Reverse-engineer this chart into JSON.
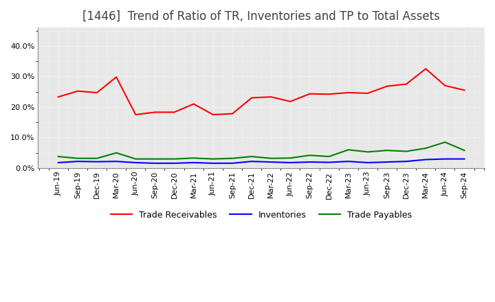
{
  "title": "[1446]  Trend of Ratio of TR, Inventories and TP to Total Assets",
  "x_labels": [
    "Jun-19",
    "Sep-19",
    "Dec-19",
    "Mar-20",
    "Jun-20",
    "Sep-20",
    "Dec-20",
    "Mar-21",
    "Jun-21",
    "Sep-21",
    "Dec-21",
    "Mar-22",
    "Jun-22",
    "Sep-22",
    "Dec-22",
    "Mar-23",
    "Jun-23",
    "Sep-23",
    "Dec-23",
    "Mar-24",
    "Jun-24",
    "Sep-24"
  ],
  "trade_receivables": [
    0.233,
    0.252,
    0.247,
    0.298,
    0.175,
    0.183,
    0.183,
    0.21,
    0.175,
    0.178,
    0.23,
    0.233,
    0.218,
    0.243,
    0.242,
    0.247,
    0.245,
    0.268,
    0.275,
    0.325,
    0.27,
    0.255
  ],
  "inventories": [
    0.018,
    0.022,
    0.021,
    0.022,
    0.018,
    0.016,
    0.016,
    0.018,
    0.016,
    0.016,
    0.022,
    0.02,
    0.018,
    0.02,
    0.019,
    0.022,
    0.018,
    0.02,
    0.022,
    0.028,
    0.03,
    0.03
  ],
  "trade_payables": [
    0.038,
    0.032,
    0.032,
    0.05,
    0.03,
    0.03,
    0.03,
    0.033,
    0.03,
    0.032,
    0.038,
    0.032,
    0.033,
    0.042,
    0.038,
    0.06,
    0.053,
    0.058,
    0.055,
    0.065,
    0.085,
    0.058
  ],
  "tr_color": "#ff0000",
  "inv_color": "#0000ff",
  "tp_color": "#008000",
  "ylim": [
    0.0,
    0.46
  ],
  "yticks": [
    0.0,
    0.1,
    0.2,
    0.3,
    0.4
  ],
  "plot_bg_color": "#e8e8e8",
  "figure_bg_color": "#ffffff",
  "grid_color": "#ffffff",
  "title_color": "#404040",
  "title_fontsize": 12,
  "tick_fontsize": 8,
  "legend_labels": [
    "Trade Receivables",
    "Inventories",
    "Trade Payables"
  ]
}
